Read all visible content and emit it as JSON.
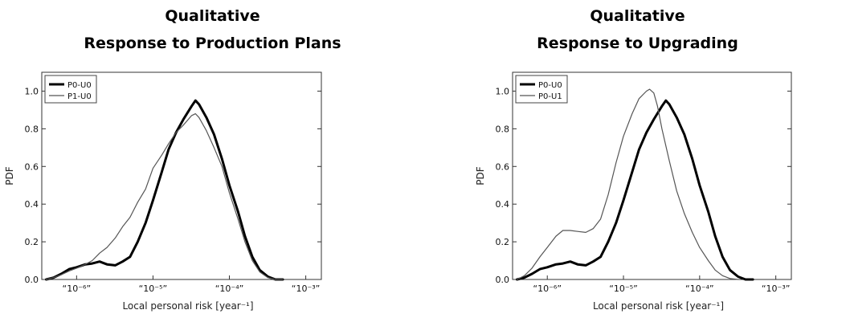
{
  "chart_data": [
    {
      "type": "line",
      "title_lines": [
        "Qualitative",
        "Response to Production Plans"
      ],
      "xlabel": "Local personal risk  [year⁻¹]",
      "ylabel": "PDF",
      "x_scale": "log",
      "xlim": [
        3.5e-07,
        0.0016
      ],
      "ylim": [
        0,
        1.1
      ],
      "x_tick_labels": [
        {
          "value": 1e-06,
          "text": "“10⁻⁶”"
        },
        {
          "value": 1e-05,
          "text": "“10⁻⁵”"
        },
        {
          "value": 0.0001,
          "text": "“10⁻⁴”"
        },
        {
          "value": 0.001,
          "text": "“10⁻³”"
        }
      ],
      "y_ticks": [
        0.0,
        0.2,
        0.4,
        0.6,
        0.8,
        1.0
      ],
      "y_tick_labels": [
        "0.0",
        "0.2",
        "0.4",
        "0.6",
        "0.8",
        "1.0"
      ],
      "legend_position": "top-left",
      "grid": false,
      "series": [
        {
          "name": "P0-U0",
          "style": "thick",
          "color": "#000000",
          "x": [
            4e-07,
            5e-07,
            6.3e-07,
            8e-07,
            1e-06,
            1.3e-06,
            1.6e-06,
            2e-06,
            2.5e-06,
            3.2e-06,
            4e-06,
            5e-06,
            6.3e-06,
            8e-06,
            1e-05,
            1.3e-05,
            1.6e-05,
            2e-05,
            2.5e-05,
            3.2e-05,
            3.6e-05,
            4e-05,
            5e-05,
            6.3e-05,
            8e-05,
            0.0001,
            0.00013,
            0.00016,
            0.0002,
            0.00025,
            0.00032,
            0.0004,
            0.0005
          ],
          "y": [
            0.0,
            0.01,
            0.03,
            0.055,
            0.065,
            0.08,
            0.085,
            0.095,
            0.08,
            0.075,
            0.095,
            0.12,
            0.2,
            0.3,
            0.42,
            0.57,
            0.69,
            0.78,
            0.85,
            0.92,
            0.95,
            0.93,
            0.86,
            0.77,
            0.64,
            0.5,
            0.36,
            0.23,
            0.12,
            0.05,
            0.015,
            0.0,
            0.0
          ]
        },
        {
          "name": "P1-U0",
          "style": "thin",
          "color": "#555555",
          "x": [
            4e-07,
            5e-07,
            6.3e-07,
            8e-07,
            1e-06,
            1.3e-06,
            1.6e-06,
            2e-06,
            2.5e-06,
            3.2e-06,
            4e-06,
            5e-06,
            6.3e-06,
            8e-06,
            1e-05,
            1.3e-05,
            1.6e-05,
            2e-05,
            2.5e-05,
            3.2e-05,
            3.6e-05,
            4e-05,
            5e-05,
            6.3e-05,
            8e-05,
            0.0001,
            0.00013,
            0.00016,
            0.0002,
            0.00025,
            0.00032,
            0.0004,
            0.0005
          ],
          "y": [
            0.0,
            0.01,
            0.025,
            0.045,
            0.06,
            0.08,
            0.1,
            0.14,
            0.17,
            0.22,
            0.28,
            0.33,
            0.41,
            0.48,
            0.59,
            0.66,
            0.72,
            0.78,
            0.82,
            0.87,
            0.88,
            0.86,
            0.79,
            0.7,
            0.6,
            0.46,
            0.32,
            0.2,
            0.1,
            0.04,
            0.01,
            0.0,
            0.0
          ]
        }
      ]
    },
    {
      "type": "line",
      "title_lines": [
        "Qualitative",
        "Response to Upgrading"
      ],
      "xlabel": "Local personal risk  [year⁻¹]",
      "ylabel": "PDF",
      "x_scale": "log",
      "xlim": [
        3.5e-07,
        0.0016
      ],
      "ylim": [
        0,
        1.1
      ],
      "x_tick_labels": [
        {
          "value": 1e-06,
          "text": "“10⁻⁶”"
        },
        {
          "value": 1e-05,
          "text": "“10⁻⁵”"
        },
        {
          "value": 0.0001,
          "text": "“10⁻⁴”"
        },
        {
          "value": 0.001,
          "text": "“10⁻³”"
        }
      ],
      "y_ticks": [
        0.0,
        0.2,
        0.4,
        0.6,
        0.8,
        1.0
      ],
      "y_tick_labels": [
        "0.0",
        "0.2",
        "0.4",
        "0.6",
        "0.8",
        "1.0"
      ],
      "legend_position": "top-left",
      "grid": false,
      "series": [
        {
          "name": "P0-U0",
          "style": "thick",
          "color": "#000000",
          "x": [
            4e-07,
            5e-07,
            6.3e-07,
            8e-07,
            1e-06,
            1.3e-06,
            1.6e-06,
            2e-06,
            2.5e-06,
            3.2e-06,
            4e-06,
            5e-06,
            6.3e-06,
            8e-06,
            1e-05,
            1.3e-05,
            1.6e-05,
            2e-05,
            2.5e-05,
            3.2e-05,
            3.6e-05,
            4e-05,
            5e-05,
            6.3e-05,
            8e-05,
            0.0001,
            0.00013,
            0.00016,
            0.0002,
            0.00025,
            0.00032,
            0.0004,
            0.0005
          ],
          "y": [
            0.0,
            0.01,
            0.03,
            0.055,
            0.065,
            0.08,
            0.085,
            0.095,
            0.08,
            0.075,
            0.095,
            0.12,
            0.2,
            0.3,
            0.42,
            0.57,
            0.69,
            0.78,
            0.85,
            0.92,
            0.95,
            0.93,
            0.86,
            0.77,
            0.64,
            0.5,
            0.36,
            0.23,
            0.12,
            0.05,
            0.015,
            0.0,
            0.0
          ]
        },
        {
          "name": "P0-U1",
          "style": "thin",
          "color": "#555555",
          "x": [
            4e-07,
            5e-07,
            6.3e-07,
            8e-07,
            1e-06,
            1.3e-06,
            1.6e-06,
            2e-06,
            2.5e-06,
            3.2e-06,
            4e-06,
            5e-06,
            6.3e-06,
            8e-06,
            1e-05,
            1.3e-05,
            1.6e-05,
            2e-05,
            2.2e-05,
            2.5e-05,
            2.8e-05,
            3.2e-05,
            4e-05,
            5e-05,
            6.3e-05,
            8e-05,
            0.0001,
            0.00013,
            0.00016,
            0.0002,
            0.00025,
            0.00032
          ],
          "y": [
            0.0,
            0.02,
            0.06,
            0.12,
            0.17,
            0.23,
            0.26,
            0.26,
            0.255,
            0.25,
            0.27,
            0.32,
            0.45,
            0.62,
            0.76,
            0.88,
            0.96,
            1.0,
            1.01,
            0.99,
            0.92,
            0.8,
            0.63,
            0.47,
            0.35,
            0.25,
            0.17,
            0.1,
            0.05,
            0.02,
            0.005,
            0.0
          ]
        }
      ]
    }
  ]
}
